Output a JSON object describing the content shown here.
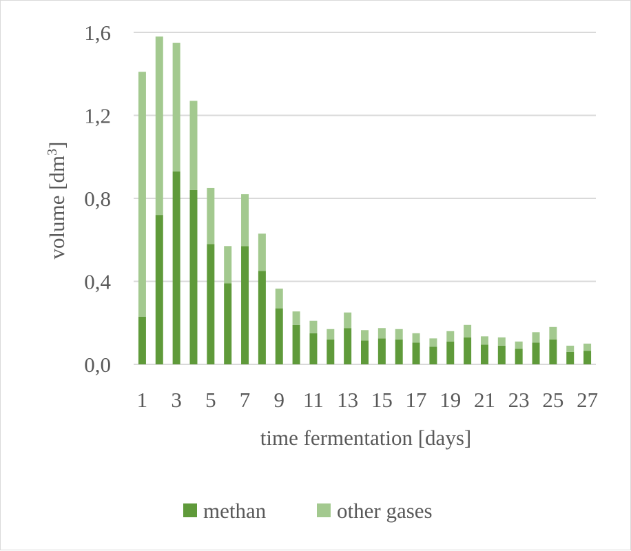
{
  "chart_data": {
    "type": "bar",
    "stacked": true,
    "xlabel": "time fermentation [days]",
    "ylabel_main": "volume [dm",
    "ylabel_sup": "3",
    "ylabel_close": "]",
    "ylim": [
      0,
      1.6
    ],
    "yticks": [
      "0,0",
      "0,4",
      "0,8",
      "1,2",
      "1,6"
    ],
    "ytick_values": [
      0,
      0.4,
      0.8,
      1.2,
      1.6
    ],
    "categories": [
      1,
      2,
      3,
      4,
      5,
      6,
      7,
      8,
      9,
      10,
      11,
      12,
      13,
      14,
      15,
      16,
      17,
      18,
      19,
      20,
      21,
      22,
      23,
      24,
      25,
      26,
      27
    ],
    "xtick_labels": [
      "1",
      "3",
      "5",
      "7",
      "9",
      "11",
      "13",
      "15",
      "17",
      "19",
      "21",
      "23",
      "25",
      "27"
    ],
    "grid": true,
    "legend_position": "bottom",
    "series": [
      {
        "name": "methan",
        "color": "#5f9a3a",
        "values": [
          0.23,
          0.72,
          0.93,
          0.84,
          0.58,
          0.39,
          0.57,
          0.45,
          0.27,
          0.19,
          0.15,
          0.12,
          0.175,
          0.115,
          0.125,
          0.12,
          0.105,
          0.085,
          0.11,
          0.13,
          0.095,
          0.09,
          0.075,
          0.105,
          0.12,
          0.06,
          0.065
        ]
      },
      {
        "name": "other gases",
        "color": "#a3c98f",
        "values": [
          1.18,
          0.86,
          0.62,
          0.43,
          0.27,
          0.18,
          0.25,
          0.18,
          0.095,
          0.065,
          0.06,
          0.05,
          0.075,
          0.05,
          0.05,
          0.05,
          0.045,
          0.04,
          0.05,
          0.06,
          0.04,
          0.04,
          0.035,
          0.05,
          0.06,
          0.03,
          0.035
        ]
      }
    ]
  }
}
